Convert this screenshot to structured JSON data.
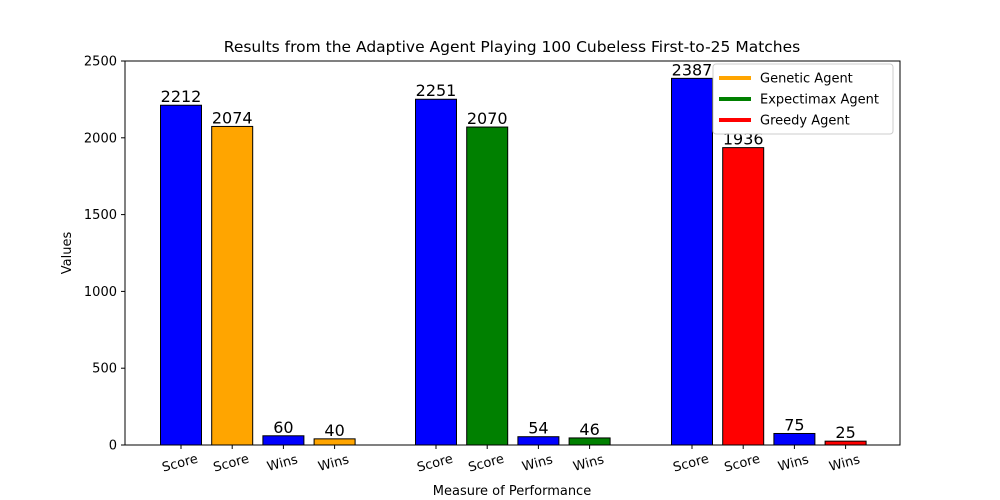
{
  "chart_data": {
    "type": "bar",
    "title": "Results from the Adaptive Agent Playing 100 Cubeless First-to-25 Matches",
    "xlabel": "Measure of Performance",
    "ylabel": "Values",
    "ylim": [
      0,
      2500
    ],
    "yticks": [
      0,
      500,
      1000,
      1500,
      2000,
      2500
    ],
    "grid": false,
    "legend_position": "top-right",
    "legend": [
      {
        "name": "Genetic Agent",
        "color": "#ffa500"
      },
      {
        "name": "Expectimax Agent",
        "color": "#008000"
      },
      {
        "name": "Greedy Agent",
        "color": "#ff0000"
      }
    ],
    "groups": [
      {
        "bars": [
          {
            "category": "Score",
            "value": 2212,
            "label": "2212",
            "color": "#0000ff"
          },
          {
            "category": "Score",
            "value": 2074,
            "label": "2074",
            "color": "#ffa500"
          },
          {
            "category": "Wins",
            "value": 60,
            "label": "60",
            "color": "#0000ff"
          },
          {
            "category": "Wins",
            "value": 40,
            "label": "40",
            "color": "#ffa500"
          }
        ]
      },
      {
        "bars": [
          {
            "category": "Score",
            "value": 2251,
            "label": "2251",
            "color": "#0000ff"
          },
          {
            "category": "Score",
            "value": 2070,
            "label": "2070",
            "color": "#008000"
          },
          {
            "category": "Wins",
            "value": 54,
            "label": "54",
            "color": "#0000ff"
          },
          {
            "category": "Wins",
            "value": 46,
            "label": "46",
            "color": "#008000"
          }
        ]
      },
      {
        "bars": [
          {
            "category": "Score",
            "value": 2387,
            "label": "2387",
            "color": "#0000ff"
          },
          {
            "category": "Score",
            "value": 1936,
            "label": "1936",
            "color": "#ff0000"
          },
          {
            "category": "Wins",
            "value": 75,
            "label": "75",
            "color": "#0000ff"
          },
          {
            "category": "Wins",
            "value": 25,
            "label": "25",
            "color": "#ff0000"
          }
        ]
      }
    ]
  }
}
